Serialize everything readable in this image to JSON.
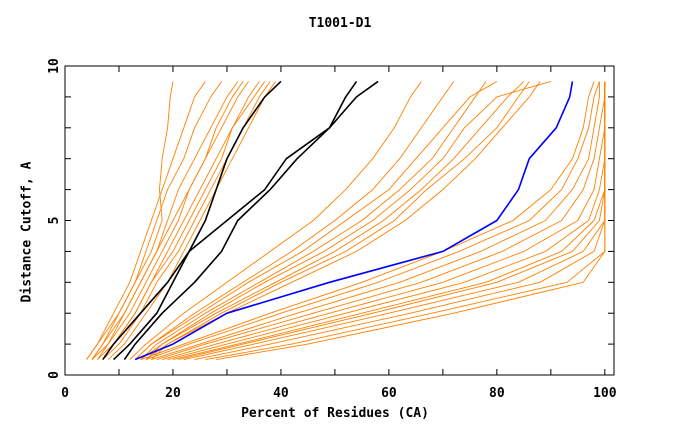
{
  "chart_data": {
    "type": "line",
    "title": "T1001-D1",
    "xlabel": "Percent of Residues (CA)",
    "ylabel": "Distance Cutoff, A",
    "xlim": [
      0,
      101.7
    ],
    "ylim": [
      0,
      10
    ],
    "xticks": [
      0,
      20,
      40,
      60,
      80,
      100
    ],
    "yticks": [
      0,
      5,
      10
    ],
    "grid": false,
    "colors": {
      "orange": "#ff8000",
      "blue": "#0000ff",
      "black": "#000000"
    },
    "y": [
      0.5,
      1,
      2,
      3,
      4,
      5,
      6,
      7,
      8,
      9,
      9.5
    ],
    "orange_series": [
      [
        4,
        6,
        9,
        12,
        14,
        16,
        18,
        20,
        22,
        24,
        26
      ],
      [
        5,
        7,
        10,
        13,
        15,
        17,
        19,
        22,
        24,
        27,
        29
      ],
      [
        5,
        8,
        11,
        14,
        17,
        19,
        21,
        24,
        27,
        30,
        32
      ],
      [
        6,
        8,
        12,
        15,
        18,
        21,
        23,
        26,
        29,
        32,
        34
      ],
      [
        6,
        9,
        13,
        16,
        19,
        22,
        25,
        28,
        31,
        34,
        36
      ],
      [
        7,
        10,
        14,
        17,
        21,
        24,
        27,
        30,
        33,
        36,
        38
      ],
      [
        8,
        11,
        15,
        19,
        22,
        25,
        28,
        31,
        34,
        37,
        39
      ],
      [
        5,
        7,
        11,
        14,
        17,
        20,
        23,
        26,
        28,
        31,
        33
      ],
      [
        7,
        9,
        13,
        16,
        20,
        23,
        26,
        29,
        31,
        35,
        37
      ],
      [
        4,
        6,
        10,
        13,
        16,
        18,
        17.5,
        18,
        19,
        19.5,
        20
      ],
      [
        12,
        15,
        22,
        30,
        38,
        46,
        52,
        57,
        61,
        64,
        66
      ],
      [
        13,
        16,
        24,
        33,
        42,
        50,
        57,
        62,
        66,
        70,
        72
      ],
      [
        14,
        17,
        26,
        36,
        46,
        55,
        62,
        68,
        72,
        76,
        78
      ],
      [
        15,
        18,
        28,
        39,
        50,
        59,
        66,
        72,
        77,
        82,
        85
      ],
      [
        16,
        19,
        30,
        42,
        54,
        63,
        70,
        76,
        81,
        86,
        88
      ],
      [
        13,
        16,
        25,
        34,
        44,
        52,
        60,
        65,
        70,
        75,
        80
      ],
      [
        14,
        18,
        27,
        37,
        48,
        57,
        64,
        70,
        74,
        80,
        90
      ],
      [
        15,
        19,
        29,
        40,
        52,
        61,
        67,
        74,
        80,
        84,
        86
      ],
      [
        14,
        22,
        38,
        55,
        70,
        83,
        90,
        94,
        96,
        97,
        98
      ],
      [
        15,
        23,
        40,
        58,
        73,
        86,
        92,
        95,
        97,
        98,
        99
      ],
      [
        16,
        25,
        43,
        62,
        77,
        89,
        94,
        97,
        98,
        99,
        99
      ],
      [
        17,
        26,
        46,
        66,
        81,
        92,
        96,
        98,
        99,
        100,
        100
      ],
      [
        18,
        28,
        49,
        70,
        85,
        95,
        98,
        99,
        100,
        100,
        100
      ],
      [
        19,
        30,
        52,
        74,
        89,
        97,
        99,
        100,
        100,
        100,
        100
      ],
      [
        20,
        32,
        55,
        78,
        92,
        98,
        100,
        100,
        100,
        100,
        100
      ],
      [
        22,
        35,
        60,
        84,
        96,
        100,
        100,
        100,
        100,
        100,
        100
      ],
      [
        24,
        38,
        64,
        88,
        98,
        100,
        100,
        100,
        100,
        100,
        100
      ],
      [
        26,
        42,
        68,
        93,
        100,
        100,
        100,
        100,
        100,
        100,
        100
      ],
      [
        28,
        45,
        72,
        96,
        100,
        100,
        100,
        100,
        100,
        100,
        100
      ],
      [
        21,
        33,
        57,
        80,
        94,
        99,
        100,
        100,
        100,
        100,
        100
      ]
    ],
    "black_series": [
      [
        7,
        9,
        14,
        19,
        23,
        26,
        28,
        30,
        33,
        37,
        40
      ],
      [
        9,
        12,
        17,
        20,
        23,
        30,
        37,
        41,
        49,
        52,
        54
      ],
      [
        11,
        13,
        18,
        24,
        29,
        32,
        38,
        43,
        49,
        54,
        58
      ]
    ],
    "blue_series": [
      13,
      20,
      30,
      49,
      70,
      80,
      84,
      86,
      91,
      93.5,
      94
    ]
  }
}
